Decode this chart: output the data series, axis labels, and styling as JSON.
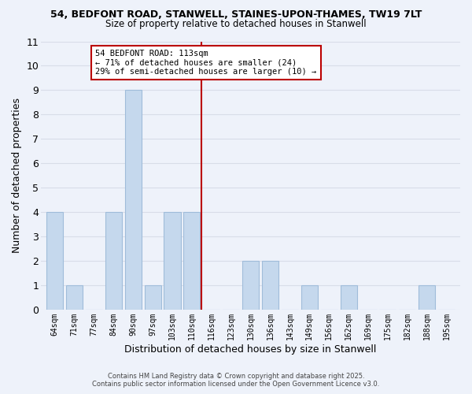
{
  "title_line1": "54, BEDFONT ROAD, STANWELL, STAINES-UPON-THAMES, TW19 7LT",
  "title_line2": "Size of property relative to detached houses in Stanwell",
  "xlabel": "Distribution of detached houses by size in Stanwell",
  "ylabel": "Number of detached properties",
  "bin_labels": [
    "64sqm",
    "71sqm",
    "77sqm",
    "84sqm",
    "90sqm",
    "97sqm",
    "103sqm",
    "110sqm",
    "116sqm",
    "123sqm",
    "130sqm",
    "136sqm",
    "143sqm",
    "149sqm",
    "156sqm",
    "162sqm",
    "169sqm",
    "175sqm",
    "182sqm",
    "188sqm",
    "195sqm"
  ],
  "counts": [
    4,
    1,
    0,
    4,
    9,
    1,
    4,
    4,
    0,
    0,
    2,
    2,
    0,
    1,
    0,
    1,
    0,
    0,
    0,
    1,
    0
  ],
  "bar_color": "#c5d8ed",
  "bar_edge_color": "#a0bcda",
  "vline_value": 113,
  "vline_color": "#bb0000",
  "annotation_text_line1": "54 BEDFONT ROAD: 113sqm",
  "annotation_text_line2": "← 71% of detached houses are smaller (24)",
  "annotation_text_line3": "29% of semi-detached houses are larger (10) →",
  "annotation_box_color": "#bb0000",
  "ylim": [
    0,
    11
  ],
  "yticks": [
    0,
    1,
    2,
    3,
    4,
    5,
    6,
    7,
    8,
    9,
    10,
    11
  ],
  "background_color": "#eef2fa",
  "grid_color": "#d8dde8",
  "footer_line1": "Contains HM Land Registry data © Crown copyright and database right 2025.",
  "footer_line2": "Contains public sector information licensed under the Open Government Licence v3.0."
}
